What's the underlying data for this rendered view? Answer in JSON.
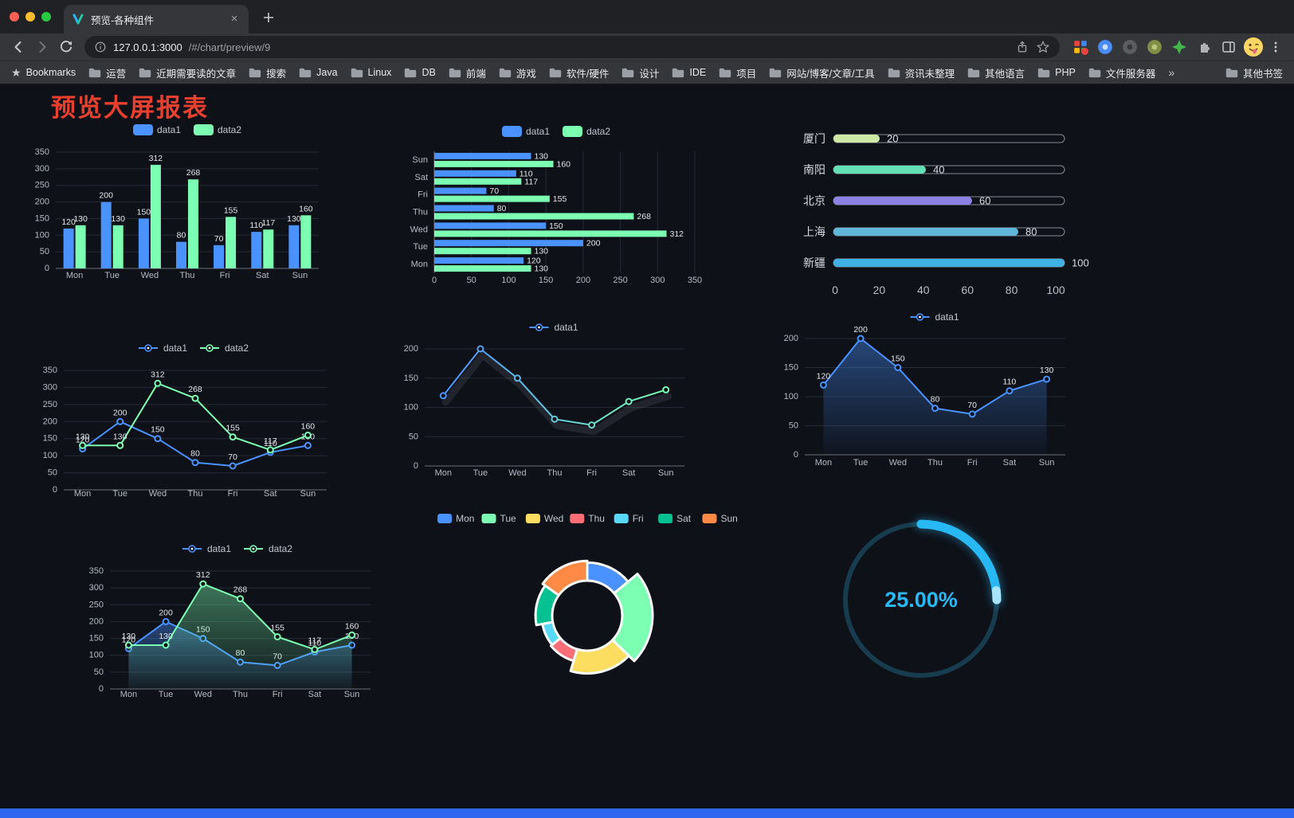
{
  "browser": {
    "tab": {
      "title": "预览-各种组件"
    },
    "address": {
      "host": "127.0.0.1:3000",
      "path": "/#/chart/preview/9"
    },
    "bookmarks": {
      "label": "Bookmarks",
      "items": [
        "运营",
        "近期需要读的文章",
        "搜索",
        "Java",
        "Linux",
        "DB",
        "前端",
        "游戏",
        "软件/硬件",
        "设计",
        "IDE",
        "项目",
        "网站/博客/文章/工具",
        "资讯未整理",
        "其他语言",
        "PHP",
        "文件服务器"
      ],
      "overflow": "»",
      "other": "其他书签"
    }
  },
  "page": {
    "title": "预览大屏报表",
    "title_color": "#e8402f",
    "background": "#0e1118",
    "footer_color": "#2e66f0"
  },
  "chart_data": [
    {
      "id": "grouped-bar",
      "type": "bar",
      "categories": [
        "Mon",
        "Tue",
        "Wed",
        "Thu",
        "Fri",
        "Sat",
        "Sun"
      ],
      "series": [
        {
          "name": "data1",
          "color": "#4992ff",
          "values": [
            120,
            200,
            150,
            80,
            70,
            110,
            130
          ]
        },
        {
          "name": "data2",
          "color": "#7cffb2",
          "values": [
            130,
            130,
            312,
            268,
            155,
            117,
            160
          ]
        }
      ],
      "yticks": [
        0,
        50,
        100,
        150,
        200,
        250,
        300,
        350
      ],
      "ylim": [
        0,
        350
      ],
      "legend": [
        "data1",
        "data2"
      ],
      "legend_position": "top"
    },
    {
      "id": "horizontal-bar",
      "type": "bar",
      "orientation": "horizontal",
      "categories": [
        "Mon",
        "Tue",
        "Wed",
        "Thu",
        "Fri",
        "Sat",
        "Sun"
      ],
      "series": [
        {
          "name": "data1",
          "color": "#4992ff",
          "values": [
            120,
            200,
            150,
            80,
            70,
            110,
            130
          ]
        },
        {
          "name": "data2",
          "color": "#7cffb2",
          "values": [
            130,
            130,
            312,
            268,
            155,
            117,
            160
          ]
        }
      ],
      "xticks": [
        0,
        50,
        100,
        150,
        200,
        250,
        300,
        350
      ],
      "xlim": [
        0,
        350
      ],
      "legend": [
        "data1",
        "data2"
      ],
      "legend_position": "top"
    },
    {
      "id": "capsule-progress",
      "type": "bar",
      "orientation": "horizontal-capsule",
      "rows": [
        {
          "label": "厦门",
          "value": 20,
          "color": "#cde9a5"
        },
        {
          "label": "南阳",
          "value": 40,
          "color": "#63e0b6"
        },
        {
          "label": "北京",
          "value": 60,
          "color": "#8c82e6"
        },
        {
          "label": "上海",
          "value": 80,
          "color": "#5fb6d9"
        },
        {
          "label": "新疆",
          "value": 100,
          "color": "#3fb1e3"
        }
      ],
      "max": 100,
      "axis_ticks": [
        0,
        20,
        40,
        60,
        80,
        100
      ]
    },
    {
      "id": "line-two-series",
      "type": "line",
      "categories": [
        "Mon",
        "Tue",
        "Wed",
        "Thu",
        "Fri",
        "Sat",
        "Sun"
      ],
      "series": [
        {
          "name": "data1",
          "color": "#4992ff",
          "values": [
            120,
            200,
            150,
            80,
            70,
            110,
            130
          ],
          "labels": true
        },
        {
          "name": "data2",
          "color": "#7cffb2",
          "values": [
            130,
            130,
            312,
            268,
            155,
            117,
            160
          ],
          "labels": true
        }
      ],
      "yticks": [
        0,
        50,
        100,
        150,
        200,
        250,
        300,
        350
      ],
      "ylim": [
        0,
        350
      ],
      "legend": [
        "data1",
        "data2"
      ],
      "legend_position": "top"
    },
    {
      "id": "gradient-line",
      "type": "line",
      "categories": [
        "Mon",
        "Tue",
        "Wed",
        "Thu",
        "Fri",
        "Sat",
        "Sun"
      ],
      "series": [
        {
          "name": "data1",
          "color": "#4992ff",
          "color2": "#7cffb2",
          "values": [
            120,
            200,
            150,
            80,
            70,
            110,
            130
          ],
          "labels": false,
          "shadow": true
        }
      ],
      "yticks": [
        0,
        50,
        100,
        150,
        200
      ],
      "ylim": [
        0,
        200
      ],
      "legend": [
        "data1"
      ],
      "legend_position": "top",
      "grid": true
    },
    {
      "id": "area-line",
      "type": "area",
      "categories": [
        "Mon",
        "Tue",
        "Wed",
        "Thu",
        "Fri",
        "Sat",
        "Sun"
      ],
      "series": [
        {
          "name": "data1",
          "color": "#4992ff",
          "area": "#4992ff",
          "values": [
            120,
            200,
            150,
            80,
            70,
            110,
            130
          ],
          "labels": true
        }
      ],
      "yticks": [
        0,
        50,
        100,
        150,
        200
      ],
      "ylim": [
        0,
        200
      ],
      "legend": [
        "data1"
      ],
      "legend_position": "top",
      "grid": true
    },
    {
      "id": "two-series-area-line",
      "type": "area",
      "categories": [
        "Mon",
        "Tue",
        "Wed",
        "Thu",
        "Fri",
        "Sat",
        "Sun"
      ],
      "series": [
        {
          "name": "data1",
          "color": "#4992ff",
          "area": "#4992ff",
          "values": [
            120,
            200,
            150,
            80,
            70,
            110,
            130
          ],
          "labels": true
        },
        {
          "name": "data2",
          "color": "#7cffb2",
          "area": "#7cffb2",
          "values": [
            130,
            130,
            312,
            268,
            155,
            117,
            160
          ],
          "labels": true
        }
      ],
      "yticks": [
        0,
        50,
        100,
        150,
        200,
        250,
        300,
        350
      ],
      "ylim": [
        0,
        350
      ],
      "legend": [
        "data1",
        "data2"
      ],
      "legend_position": "top"
    },
    {
      "id": "rose-pie",
      "type": "pie",
      "rose": true,
      "legend": [
        "Mon",
        "Tue",
        "Wed",
        "Thu",
        "Fri",
        "Sat",
        "Sun"
      ],
      "values": [
        120,
        200,
        150,
        80,
        70,
        110,
        130
      ],
      "colors": [
        "#4992ff",
        "#7cffb2",
        "#fddd60",
        "#ff6e76",
        "#58d9f9",
        "#05c091",
        "#ff8a45"
      ],
      "legend_position": "top"
    },
    {
      "id": "gauge",
      "type": "gauge",
      "value": 25,
      "label": "25.00%",
      "color": "#28b9f5",
      "track_color": "#173c4d"
    }
  ]
}
